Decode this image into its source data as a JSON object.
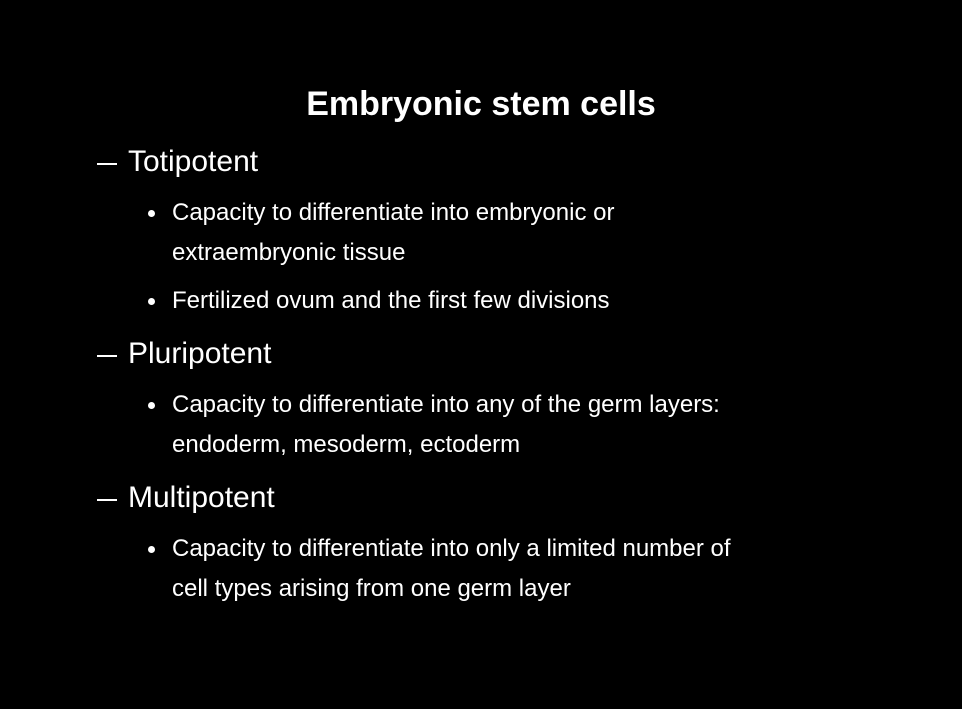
{
  "title": "Embryonic stem cells",
  "sections": [
    {
      "heading": "Totipotent",
      "bullets": [
        {
          "lines": [
            "Capacity to differentiate into embryonic or",
            "extraembryonic tissue"
          ]
        },
        {
          "lines": [
            "Fertilized ovum and the first few divisions"
          ]
        }
      ]
    },
    {
      "heading": "Pluripotent",
      "bullets": [
        {
          "lines": [
            "Capacity to differentiate into any of the germ layers:",
            "endoderm, mesoderm, ectoderm"
          ]
        }
      ]
    },
    {
      "heading": "Multipotent",
      "bullets": [
        {
          "lines": [
            "Capacity to differentiate into only a limited number of",
            "cell types arising from one germ layer"
          ]
        }
      ]
    }
  ]
}
